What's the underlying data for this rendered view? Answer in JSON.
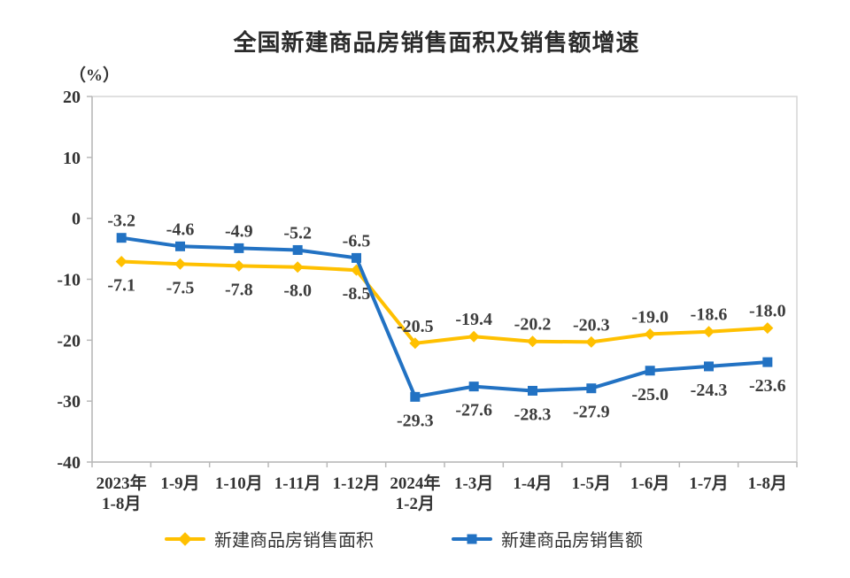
{
  "page": {
    "title": "全国新建商品房销售面积及销售额增速",
    "unit_label": "（%）"
  },
  "chart_data": {
    "type": "line",
    "title": "全国新建商品房销售面积及销售额增速",
    "y_unit": "（%）",
    "categories": [
      "2023年\n1-8月",
      "1-9月",
      "1-10月",
      "1-11月",
      "1-12月",
      "2024年\n1-2月",
      "1-3月",
      "1-4月",
      "1-5月",
      "1-6月",
      "1-7月",
      "1-8月"
    ],
    "series": [
      {
        "name": "新建商品房销售面积",
        "color": "#FFC000",
        "marker": "diamond",
        "values": [
          -7.1,
          -7.5,
          -7.8,
          -8.0,
          -8.5,
          -20.5,
          -19.4,
          -20.2,
          -20.3,
          -19.0,
          -18.6,
          -18.0
        ],
        "label_sides": [
          "below",
          "below",
          "below",
          "below",
          "below",
          "above",
          "above",
          "above",
          "above",
          "above",
          "above",
          "above"
        ]
      },
      {
        "name": "新建商品房销售额",
        "color": "#2272C3",
        "marker": "square",
        "values": [
          -3.2,
          -4.6,
          -4.9,
          -5.2,
          -6.5,
          -29.3,
          -27.6,
          -28.3,
          -27.9,
          -25.0,
          -24.3,
          -23.6
        ],
        "label_sides": [
          "above",
          "above",
          "above",
          "above",
          "above",
          "below",
          "below",
          "below",
          "below",
          "below",
          "below",
          "below"
        ]
      }
    ],
    "ylim": [
      -40,
      20
    ],
    "yticks": [
      20,
      10,
      0,
      -10,
      -20,
      -30,
      -40
    ],
    "grid": false,
    "legend_position": "bottom",
    "axis_color": "#b9b9b9",
    "border_color": "#d6d6d6",
    "value_decimals": 1
  },
  "legend": {
    "items": [
      {
        "label": "新建商品房销售面积"
      },
      {
        "label": "新建商品房销售额"
      }
    ]
  }
}
